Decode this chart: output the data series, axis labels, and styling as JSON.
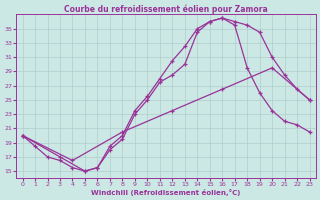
{
  "title": "Courbe du refroidissement éolien pour Zamora",
  "xlabel": "Windchill (Refroidissement éolien,°C)",
  "background_color": "#cce8e4",
  "grid_color": "#b0cccc",
  "line_color": "#993399",
  "xlim": [
    -0.5,
    23.5
  ],
  "ylim": [
    14,
    37
  ],
  "yticks": [
    15,
    17,
    19,
    21,
    23,
    25,
    27,
    29,
    31,
    33,
    35
  ],
  "xticks": [
    0,
    1,
    2,
    3,
    4,
    5,
    6,
    7,
    8,
    9,
    10,
    11,
    12,
    13,
    14,
    15,
    16,
    17,
    18,
    19,
    20,
    21,
    22,
    23
  ],
  "line1_x": [
    0,
    1,
    2,
    3,
    4,
    5,
    6,
    7,
    8,
    9,
    10,
    11,
    12,
    13,
    14,
    15,
    16,
    17,
    18,
    19,
    20,
    21,
    22,
    23
  ],
  "line1_y": [
    20.0,
    18.5,
    17.0,
    16.5,
    15.5,
    15.0,
    15.5,
    18.0,
    19.5,
    23.0,
    25.0,
    27.5,
    28.5,
    30.0,
    34.5,
    36.0,
    36.5,
    36.0,
    35.5,
    34.5,
    31.0,
    28.5,
    26.5,
    25.0
  ],
  "line2_x": [
    0,
    3,
    5,
    6,
    7,
    8,
    9,
    10,
    11,
    12,
    13,
    14,
    15,
    16,
    17,
    18,
    19,
    20,
    21,
    22,
    23
  ],
  "line2_y": [
    20.0,
    17.0,
    15.0,
    15.5,
    18.5,
    20.0,
    23.5,
    25.5,
    28.0,
    30.5,
    32.5,
    35.0,
    36.0,
    36.5,
    35.5,
    29.5,
    26.0,
    23.5,
    22.0,
    21.5,
    20.5
  ],
  "line3_x": [
    0,
    4,
    8,
    12,
    16,
    20,
    23
  ],
  "line3_y": [
    20.0,
    16.5,
    20.5,
    23.5,
    26.5,
    29.5,
    25.0
  ]
}
